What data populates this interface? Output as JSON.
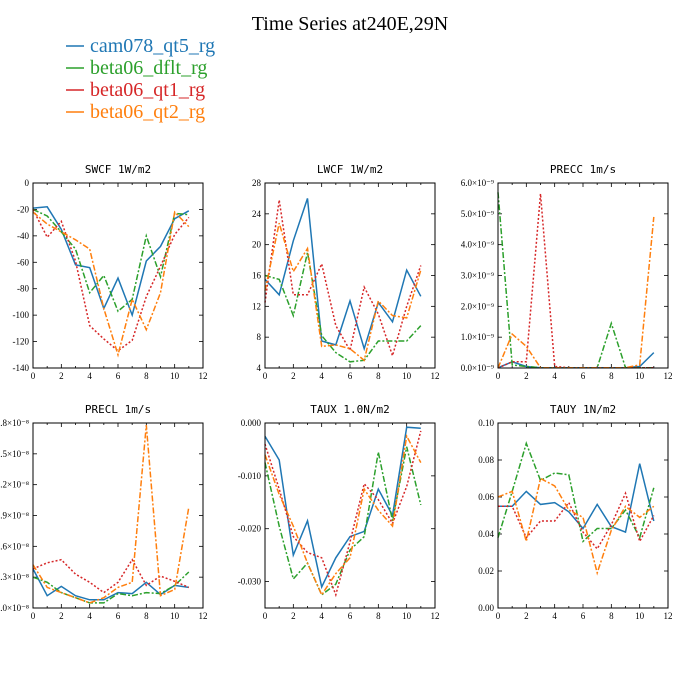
{
  "figure_title": "Time Series at240E,29N",
  "series_styles": [
    {
      "name": "cam078_qt5_rg",
      "color": "#1f77b4",
      "dash": ""
    },
    {
      "name": "beta06_dflt_rg",
      "color": "#2ca02c",
      "dash": "6,2,2,2"
    },
    {
      "name": "beta06_qt1_rg",
      "color": "#d62728",
      "dash": "2,2"
    },
    {
      "name": "beta06_qt2_rg",
      "color": "#ff7f0e",
      "dash": "6,2,2,2"
    }
  ],
  "chart_data": [
    {
      "type": "line",
      "title": "SWCF   1W/m2",
      "x": [
        0,
        1,
        2,
        3,
        4,
        5,
        6,
        7,
        8,
        9,
        10,
        11
      ],
      "xlim": [
        0,
        12
      ],
      "ylim": [
        -140,
        0
      ],
      "xticks": [
        0,
        2,
        4,
        6,
        8,
        10,
        12
      ],
      "yticks": [
        0,
        -20,
        -40,
        -60,
        -80,
        -100,
        -120,
        -140
      ],
      "yticklabels": [
        "0",
        "-20",
        "-40",
        "-60",
        "-80",
        "-100",
        "-120",
        "-140"
      ],
      "series": [
        {
          "name": "cam078_qt5_rg",
          "values": [
            -19,
            -18,
            -35,
            -62,
            -64,
            -95,
            -72,
            -100,
            -59,
            -48,
            -27,
            -21
          ]
        },
        {
          "name": "beta06_dflt_rg",
          "values": [
            -20,
            -25,
            -37,
            -50,
            -83,
            -70,
            -97,
            -88,
            -40,
            -71,
            -23,
            -24
          ]
        },
        {
          "name": "beta06_qt1_rg",
          "values": [
            -20,
            -41,
            -29,
            -59,
            -108,
            -118,
            -127,
            -119,
            -86,
            -63,
            -39,
            -26
          ]
        },
        {
          "name": "beta06_qt2_rg",
          "values": [
            -22,
            -31,
            -37,
            -43,
            -50,
            -95,
            -130,
            -88,
            -111,
            -83,
            -22,
            -33
          ]
        }
      ]
    },
    {
      "type": "line",
      "title": "LWCF   1W/m2",
      "x": [
        0,
        1,
        2,
        3,
        4,
        5,
        6,
        7,
        8,
        9,
        10,
        11
      ],
      "xlim": [
        0,
        12
      ],
      "ylim": [
        4,
        28
      ],
      "xticks": [
        0,
        2,
        4,
        6,
        8,
        10,
        12
      ],
      "yticks": [
        4,
        8,
        12,
        16,
        20,
        24,
        28
      ],
      "yticklabels": [
        "4",
        "8",
        "12",
        "16",
        "20",
        "24",
        "28"
      ],
      "series": [
        {
          "name": "cam078_qt5_rg",
          "values": [
            15.5,
            13.5,
            20.5,
            26,
            7.5,
            7,
            12.7,
            6.5,
            12.5,
            10,
            16.7,
            13.3
          ]
        },
        {
          "name": "beta06_dflt_rg",
          "values": [
            16,
            15.5,
            10.8,
            19,
            8.2,
            6,
            4.8,
            5,
            7.5,
            7.5,
            7.5,
            9.5
          ]
        },
        {
          "name": "beta06_qt1_rg",
          "values": [
            12.5,
            25.8,
            13.5,
            13.5,
            17.5,
            9.5,
            6.3,
            14.5,
            11,
            5.6,
            12,
            17.3
          ]
        },
        {
          "name": "beta06_qt2_rg",
          "values": [
            14,
            22.8,
            16.5,
            19.5,
            6.8,
            7,
            6.5,
            5,
            12.7,
            10.8,
            10.5,
            16.7
          ]
        }
      ]
    },
    {
      "type": "line",
      "title": "PRECC   1m/s",
      "x": [
        0,
        1,
        2,
        3,
        4,
        5,
        6,
        7,
        8,
        9,
        10,
        11
      ],
      "xlim": [
        0,
        12
      ],
      "ylim": [
        0,
        6e-09
      ],
      "xticks": [
        0,
        2,
        4,
        6,
        8,
        10,
        12
      ],
      "yticks": [
        0,
        1e-09,
        2e-09,
        3e-09,
        4e-09,
        5e-09,
        6e-09
      ],
      "yticklabels": [
        "0.0×10⁻⁹",
        "1.0×10⁻⁹",
        "2.0×10⁻⁹",
        "3.0×10⁻⁹",
        "4.0×10⁻⁹",
        "5.0×10⁻⁹",
        "6.0×10⁻⁹"
      ],
      "series": [
        {
          "name": "cam078_qt5_rg",
          "values": [
            1e-11,
            2e-10,
            5e-11,
            1e-11,
            1e-11,
            1e-11,
            1e-11,
            1e-11,
            1e-11,
            1e-11,
            5e-11,
            5e-10
          ]
        },
        {
          "name": "beta06_dflt_rg",
          "values": [
            5.7e-09,
            1e-10,
            5e-11,
            1e-11,
            1e-11,
            1e-11,
            1e-11,
            1e-11,
            1.45e-09,
            1e-11,
            1e-11,
            1e-11
          ]
        },
        {
          "name": "beta06_qt1_rg",
          "values": [
            0,
            2e-10,
            2e-10,
            5.65e-09,
            5e-11,
            1e-11,
            1e-11,
            1e-11,
            1e-11,
            1e-11,
            1e-11,
            1e-11
          ]
        },
        {
          "name": "beta06_qt2_rg",
          "values": [
            0,
            1.1e-09,
            7e-10,
            1e-11,
            1e-11,
            1e-11,
            1e-11,
            1e-11,
            1e-11,
            1e-11,
            1e-10,
            4.9e-09
          ]
        }
      ]
    },
    {
      "type": "line",
      "title": "PRECL   1m/s",
      "x": [
        0,
        1,
        2,
        3,
        4,
        5,
        6,
        7,
        8,
        9,
        10,
        11
      ],
      "xlim": [
        0,
        12
      ],
      "ylim": [
        0,
        1.8e-08
      ],
      "xticks": [
        0,
        2,
        4,
        6,
        8,
        10,
        12
      ],
      "yticks": [
        0,
        3e-09,
        6e-09,
        9e-09,
        1.2e-08,
        1.5e-08,
        1.8e-08
      ],
      "yticklabels": [
        "0.0×10⁻⁸",
        "0.3×10⁻⁸",
        "0.6×10⁻⁸",
        "0.9×10⁻⁸",
        "1.2×10⁻⁸",
        "1.5×10⁻⁸",
        "1.8×10⁻⁸"
      ],
      "series": [
        {
          "name": "cam078_qt5_rg",
          "values": [
            3.8e-09,
            1.2e-09,
            2.1e-09,
            1.2e-09,
            8e-10,
            8e-10,
            1.5e-09,
            1.4e-09,
            2.5e-09,
            1.3e-09,
            2.2e-09,
            2e-09
          ]
        },
        {
          "name": "beta06_dflt_rg",
          "values": [
            3e-09,
            2.5e-09,
            1.5e-09,
            1e-09,
            5e-10,
            5e-10,
            1.4e-09,
            1.2e-09,
            1.5e-09,
            1.4e-09,
            2.2e-09,
            3.5e-09
          ]
        },
        {
          "name": "beta06_qt1_rg",
          "values": [
            3.8e-09,
            4.4e-09,
            4.7e-09,
            3.3e-09,
            2.5e-09,
            1.5e-09,
            2.5e-09,
            4.7e-09,
            2.2e-09,
            3.1e-09,
            2.6e-09,
            2e-09
          ]
        },
        {
          "name": "beta06_qt2_rg",
          "values": [
            4.2e-09,
            2e-09,
            1.5e-09,
            1e-09,
            5e-10,
            1e-09,
            2e-09,
            2.5e-09,
            1.78e-08,
            1.2e-09,
            1.8e-09,
            9.8e-09
          ]
        }
      ]
    },
    {
      "type": "line",
      "title": "TAUX   1.0N/m2",
      "x": [
        0,
        1,
        2,
        3,
        4,
        5,
        6,
        7,
        8,
        9,
        10,
        11
      ],
      "xlim": [
        0,
        12
      ],
      "ylim": [
        -0.035,
        0
      ],
      "xticks": [
        0,
        2,
        4,
        6,
        8,
        10,
        12
      ],
      "yticks": [
        0,
        -0.01,
        -0.02,
        -0.03
      ],
      "yticklabels": [
        "0.000",
        "-0.010",
        "-0.020",
        "-0.030"
      ],
      "series": [
        {
          "name": "cam078_qt5_rg",
          "values": [
            -0.0025,
            -0.007,
            -0.025,
            -0.0185,
            -0.031,
            -0.0255,
            -0.0215,
            -0.0205,
            -0.0125,
            -0.0175,
            -0.0008,
            -0.001
          ]
        },
        {
          "name": "beta06_dflt_rg",
          "values": [
            -0.0075,
            -0.0195,
            -0.0295,
            -0.0265,
            -0.0325,
            -0.0305,
            -0.024,
            -0.0215,
            -0.0055,
            -0.0185,
            -0.0045,
            -0.0155
          ]
        },
        {
          "name": "beta06_qt1_rg",
          "values": [
            -0.004,
            -0.0125,
            -0.0215,
            -0.0245,
            -0.0255,
            -0.0325,
            -0.0225,
            -0.0115,
            -0.0145,
            -0.019,
            -0.012,
            -0.0015
          ]
        },
        {
          "name": "beta06_qt2_rg",
          "values": [
            -0.006,
            -0.0135,
            -0.0195,
            -0.0265,
            -0.0325,
            -0.0285,
            -0.0255,
            -0.0125,
            -0.0165,
            -0.0195,
            -0.0025,
            -0.0075
          ]
        }
      ]
    },
    {
      "type": "line",
      "title": "TAUY   1N/m2",
      "x": [
        0,
        1,
        2,
        3,
        4,
        5,
        6,
        7,
        8,
        9,
        10,
        11
      ],
      "xlim": [
        0,
        12
      ],
      "ylim": [
        0,
        0.1
      ],
      "xticks": [
        0,
        2,
        4,
        6,
        8,
        10,
        12
      ],
      "yticks": [
        0,
        0.02,
        0.04,
        0.06,
        0.08,
        0.1
      ],
      "yticklabels": [
        "0.00",
        "0.02",
        "0.04",
        "0.06",
        "0.08",
        "0.10"
      ],
      "series": [
        {
          "name": "cam078_qt5_rg",
          "values": [
            0.055,
            0.055,
            0.063,
            0.056,
            0.057,
            0.052,
            0.043,
            0.056,
            0.044,
            0.041,
            0.078,
            0.047
          ]
        },
        {
          "name": "beta06_dflt_rg",
          "values": [
            0.038,
            0.063,
            0.089,
            0.069,
            0.073,
            0.072,
            0.036,
            0.043,
            0.043,
            0.053,
            0.038,
            0.065
          ]
        },
        {
          "name": "beta06_qt1_rg",
          "values": [
            0.055,
            0.055,
            0.038,
            0.047,
            0.047,
            0.057,
            0.041,
            0.032,
            0.045,
            0.062,
            0.036,
            0.05
          ]
        },
        {
          "name": "beta06_qt2_rg",
          "values": [
            0.06,
            0.063,
            0.036,
            0.07,
            0.066,
            0.053,
            0.049,
            0.019,
            0.042,
            0.055,
            0.049,
            0.055
          ]
        }
      ]
    }
  ]
}
